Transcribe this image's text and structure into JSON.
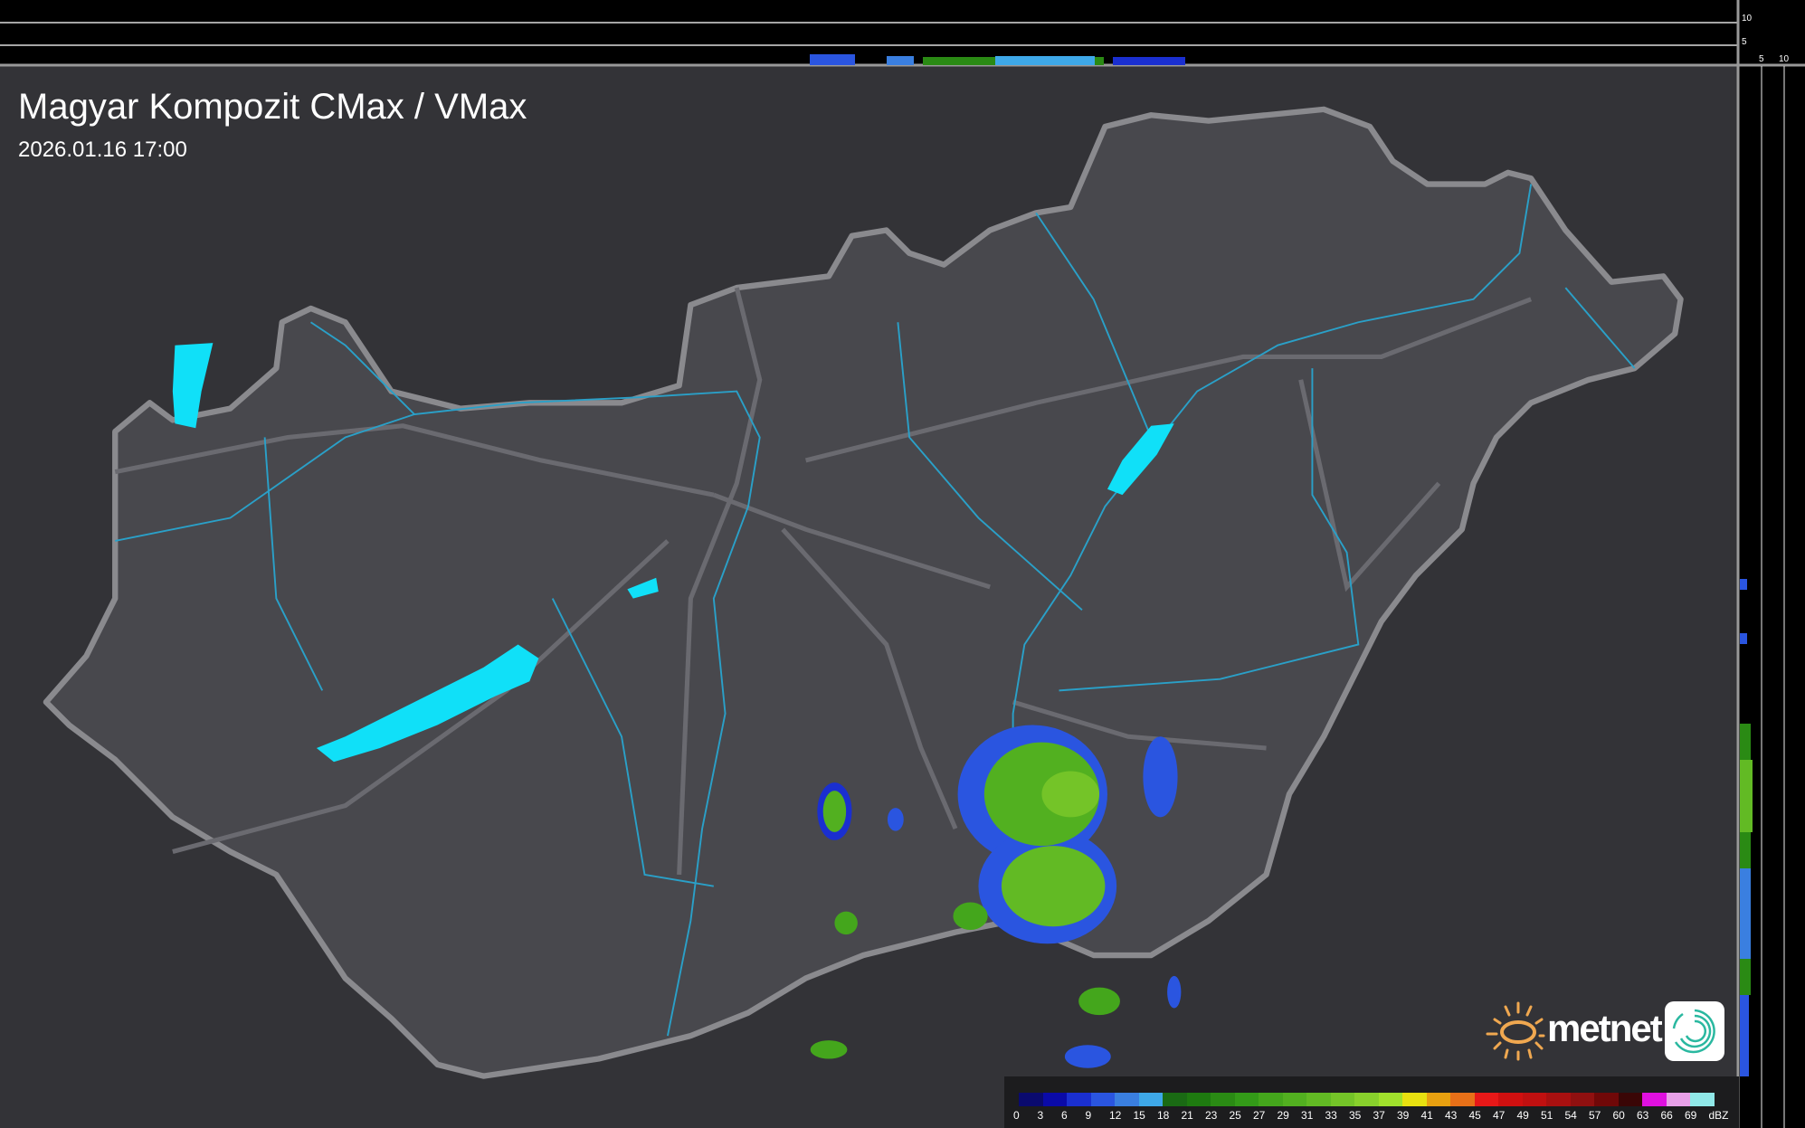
{
  "header": {
    "title": "Magyar Kompozit CMax / VMax",
    "timestamp": "2026.01.16 17:00"
  },
  "side_profile": {
    "top_axis_ticks": [
      "10",
      "5"
    ],
    "right_axis_ticks": [
      "5",
      "10"
    ]
  },
  "legend": {
    "unit": "dBZ",
    "ticks": [
      "0",
      "3",
      "6",
      "9",
      "12",
      "15",
      "18",
      "21",
      "23",
      "25",
      "27",
      "29",
      "31",
      "33",
      "35",
      "37",
      "39",
      "41",
      "43",
      "45",
      "47",
      "49",
      "51",
      "54",
      "57",
      "60",
      "63",
      "66",
      "69"
    ],
    "colors": [
      "#0a0a6e",
      "#0a0aa8",
      "#1a2fd0",
      "#2a55e0",
      "#3a7fe0",
      "#3ea8e8",
      "#1a6a14",
      "#1e7a10",
      "#2a8a14",
      "#339a18",
      "#44a61c",
      "#52b020",
      "#62ba24",
      "#74c428",
      "#88d02c",
      "#a0e02c",
      "#e8e010",
      "#e8a010",
      "#e87018",
      "#e81818",
      "#d01010",
      "#c01010",
      "#a81010",
      "#901010",
      "#700808",
      "#3a0606",
      "#e010e0",
      "#e8a0e8",
      "#90e8e8"
    ]
  },
  "logo": {
    "brand": "metnet",
    "brand_color": "#f0a850",
    "icon_color": "#2ab8a0"
  },
  "colors": {
    "background": "#343438",
    "country_fill": "#45454a",
    "border": "#8a8a8e",
    "lakes": "#10e0f8",
    "rivers": "#2aa0c8"
  }
}
